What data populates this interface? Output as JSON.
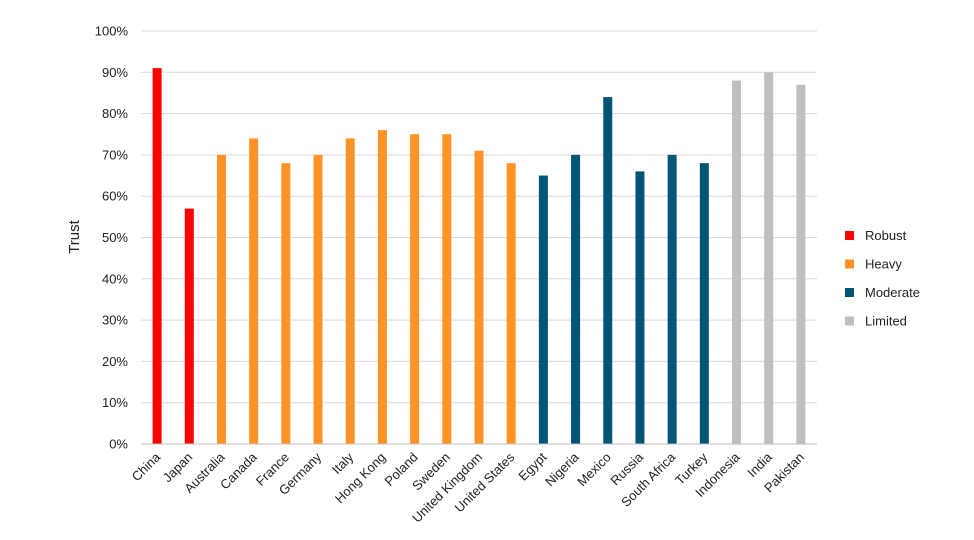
{
  "chart_data": {
    "type": "bar",
    "title": "",
    "xlabel": "",
    "ylabel": "Trust",
    "ylim": [
      0,
      100
    ],
    "yticks": [
      "0%",
      "10%",
      "20%",
      "30%",
      "40%",
      "50%",
      "60%",
      "70%",
      "80%",
      "90%",
      "100%"
    ],
    "grid": true,
    "legend_position": "right",
    "categories": [
      "China",
      "Japan",
      "Australia",
      "Canada",
      "France",
      "Germany",
      "Italy",
      "Hong Kong",
      "Poland",
      "Sweden",
      "United Kingdom",
      "United States",
      "Egypt",
      "Nigeria",
      "Mexico",
      "Russia",
      "South Africa",
      "Turkey",
      "Indonesia",
      "India",
      "Pakistan"
    ],
    "values": [
      91,
      57,
      70,
      74,
      68,
      70,
      74,
      76,
      75,
      75,
      71,
      68,
      65,
      70,
      84,
      66,
      70,
      68,
      88,
      90,
      87
    ],
    "groups": [
      "Robust",
      "Robust",
      "Heavy",
      "Heavy",
      "Heavy",
      "Heavy",
      "Heavy",
      "Heavy",
      "Heavy",
      "Heavy",
      "Heavy",
      "Heavy",
      "Moderate",
      "Moderate",
      "Moderate",
      "Moderate",
      "Moderate",
      "Moderate",
      "Limited",
      "Limited",
      "Limited"
    ],
    "legend": [
      {
        "name": "Robust",
        "color": "#ff0000"
      },
      {
        "name": "Heavy",
        "color": "#ff9326"
      },
      {
        "name": "Moderate",
        "color": "#005577"
      },
      {
        "name": "Limited",
        "color": "#bfbfbf"
      }
    ]
  }
}
